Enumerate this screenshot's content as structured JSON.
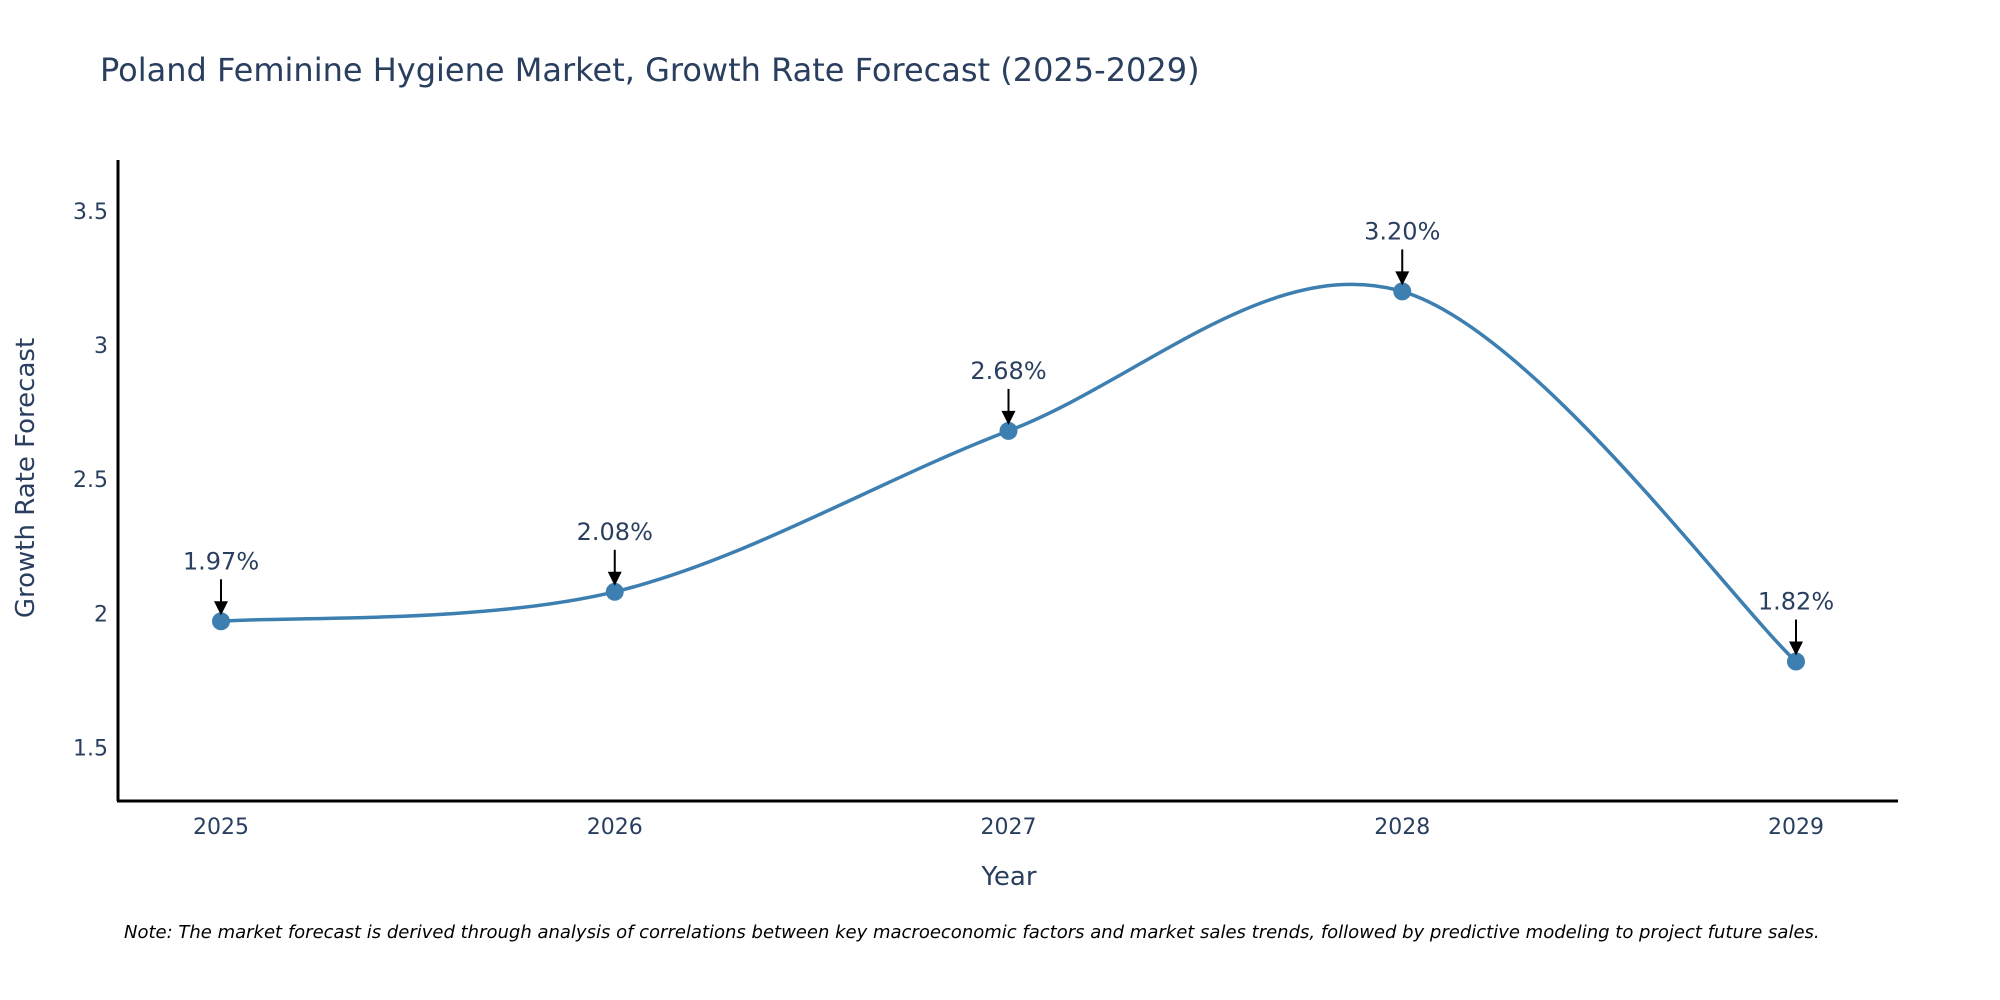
{
  "chart_data": {
    "type": "line",
    "title": "Poland Feminine Hygiene Market, Growth Rate Forecast (2025-2029)",
    "xlabel": "Year",
    "ylabel": "Growth Rate Forecast",
    "categories": [
      "2025",
      "2026",
      "2027",
      "2028",
      "2029"
    ],
    "values": [
      1.97,
      2.08,
      2.68,
      3.2,
      1.82
    ],
    "point_labels": [
      "1.97%",
      "2.08%",
      "2.68%",
      "3.20%",
      "1.82%"
    ],
    "ylim": [
      1.3,
      3.69
    ],
    "yticks": [
      1.5,
      2,
      2.5,
      3,
      3.5
    ],
    "ytick_labels": [
      "1.5",
      "2",
      "2.5",
      "3",
      "3.5"
    ],
    "grid": false,
    "legend": "none",
    "line_color": "#3d7fb0",
    "marker_color": "#3d7fb0",
    "arrow_color": "#000000",
    "text_color": "#2a3f5f",
    "note": "Note: The market forecast is derived through analysis of correlations between key macroeconomic factors and market sales trends, followed by predictive modeling to project future sales."
  }
}
